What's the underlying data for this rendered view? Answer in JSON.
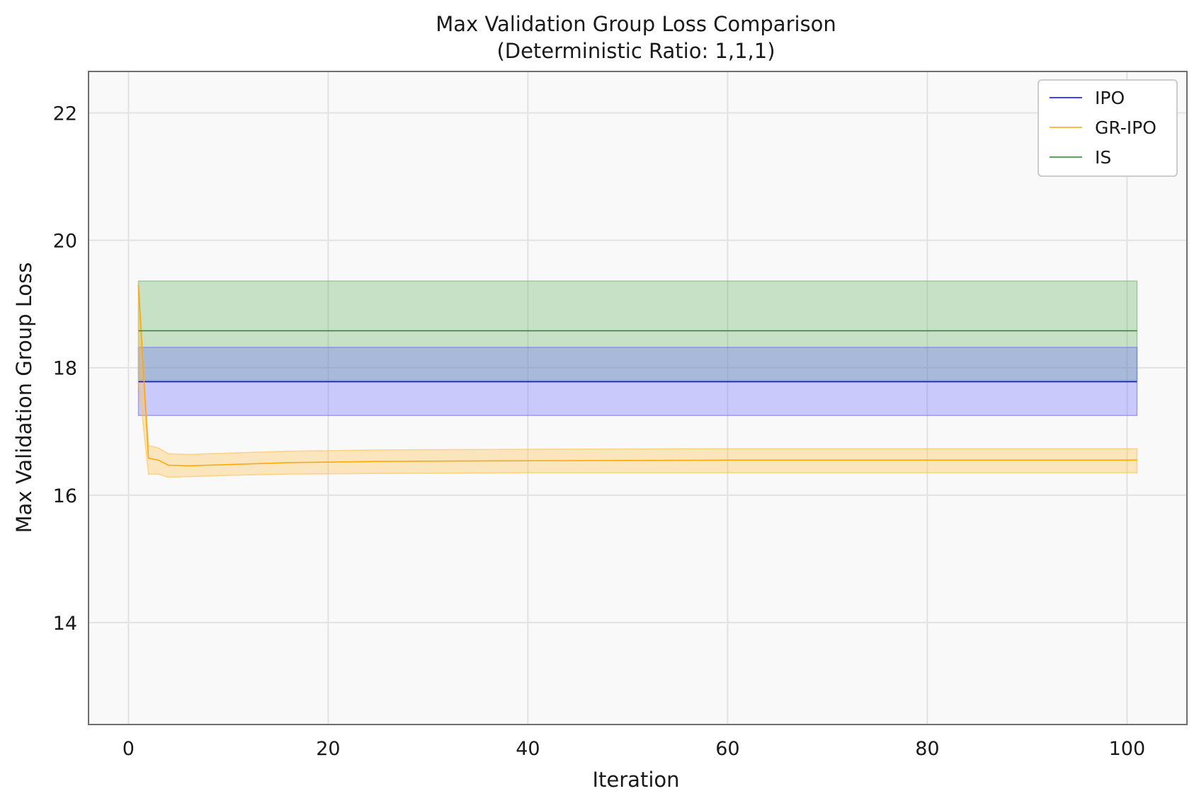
{
  "chart_data": {
    "type": "line",
    "title": "Max Validation Group Loss Comparison",
    "subtitle": "(Deterministic Ratio: 1,1,1)",
    "xlabel": "Iteration",
    "ylabel": "Max Validation Group Loss",
    "xlim": [
      -4,
      106
    ],
    "ylim": [
      12.4,
      22.65
    ],
    "xticks": [
      0,
      20,
      40,
      60,
      80,
      100
    ],
    "yticks": [
      14,
      16,
      18,
      20,
      22
    ],
    "grid": true,
    "legend_position": "top-right",
    "series": [
      {
        "name": "IPO",
        "color": "#0000ff",
        "band_color": "#7070ff",
        "x": [
          1,
          101
        ],
        "y": [
          17.78,
          17.78
        ],
        "lower": [
          17.25,
          17.25
        ],
        "upper": [
          18.32,
          18.32
        ]
      },
      {
        "name": "GR-IPO",
        "color": "#ffa500",
        "band_color": "#ffc04d",
        "x": [
          1,
          2,
          3,
          4,
          6,
          10,
          16,
          25,
          40,
          60,
          80,
          101
        ],
        "y": [
          19.3,
          16.58,
          16.55,
          16.47,
          16.46,
          16.48,
          16.51,
          16.53,
          16.54,
          16.55,
          16.55,
          16.55
        ],
        "lower": [
          17.8,
          16.33,
          16.33,
          16.28,
          16.29,
          16.31,
          16.33,
          16.34,
          16.35,
          16.35,
          16.35,
          16.35
        ],
        "upper": [
          19.35,
          16.78,
          16.74,
          16.65,
          16.64,
          16.66,
          16.69,
          16.71,
          16.72,
          16.73,
          16.73,
          16.73
        ]
      },
      {
        "name": "IS",
        "color": "#228b22",
        "band_color": "#6ab46a",
        "x": [
          1,
          101
        ],
        "y": [
          18.58,
          18.58
        ],
        "lower": [
          17.8,
          17.8
        ],
        "upper": [
          19.36,
          19.36
        ]
      }
    ]
  }
}
